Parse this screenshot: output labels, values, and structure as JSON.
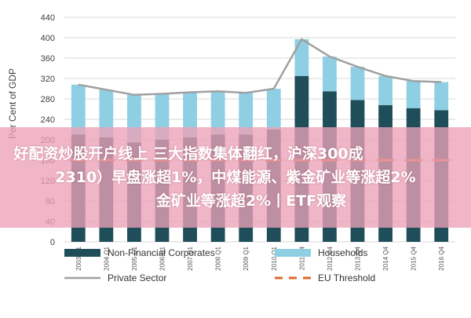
{
  "colors": {
    "non_financial": "#1f4e5a",
    "households": "#8ecfe3",
    "private_sector": "#a0a0a0",
    "eu_threshold": "#e0662b",
    "banner": "#eca0b6"
  },
  "chart_data": {
    "type": "bar",
    "ylabel": "Per Cent of GDP",
    "ylim": [
      0,
      440
    ],
    "yticks": [
      0,
      40,
      80,
      120,
      160,
      200,
      240,
      280,
      320,
      360,
      400,
      440
    ],
    "categories": [
      "2003 Q1",
      "2004 Q1",
      "2005 Q1",
      "2006 Q1",
      "2007 Q1",
      "2008 Q1",
      "2009 Q1",
      "2010 Q1",
      "2011 Q4",
      "2012 Q4",
      "2013 Q4",
      "2014 Q4",
      "2015 Q4",
      "2016 Q4"
    ],
    "series": [
      {
        "name": "Non-Financial Corporates",
        "kind": "bar",
        "values": [
          210,
          205,
          195,
          200,
          205,
          210,
          210,
          220,
          325,
          295,
          278,
          268,
          262,
          258
        ]
      },
      {
        "name": "Households",
        "kind": "bar",
        "values": [
          98,
          93,
          93,
          90,
          88,
          85,
          82,
          80,
          72,
          68,
          65,
          57,
          53,
          55
        ]
      },
      {
        "name": "Private Sector",
        "kind": "line",
        "values": [
          308,
          298,
          288,
          290,
          293,
          295,
          292,
          300,
          397,
          363,
          343,
          325,
          315,
          313
        ]
      },
      {
        "name": "EU Threshold",
        "kind": "dashed",
        "values": [
          160,
          160,
          160,
          160,
          160,
          160,
          160,
          160,
          160,
          160,
          160,
          160,
          160,
          160
        ]
      }
    ],
    "legend": [
      "Non-Financial Corporates",
      "Households",
      "Private Sector",
      "EU Threshold"
    ],
    "legend_placement": "bottom",
    "grid": true
  },
  "overlay": {
    "lines": [
      "好配资炒股开户线上 三大指数集体翻红，沪深300成",
      "2310）早盘涨超1%，中煤能源、紫金矿业等涨超2%",
      "金矿业等涨超2%丨ETF观察"
    ]
  }
}
